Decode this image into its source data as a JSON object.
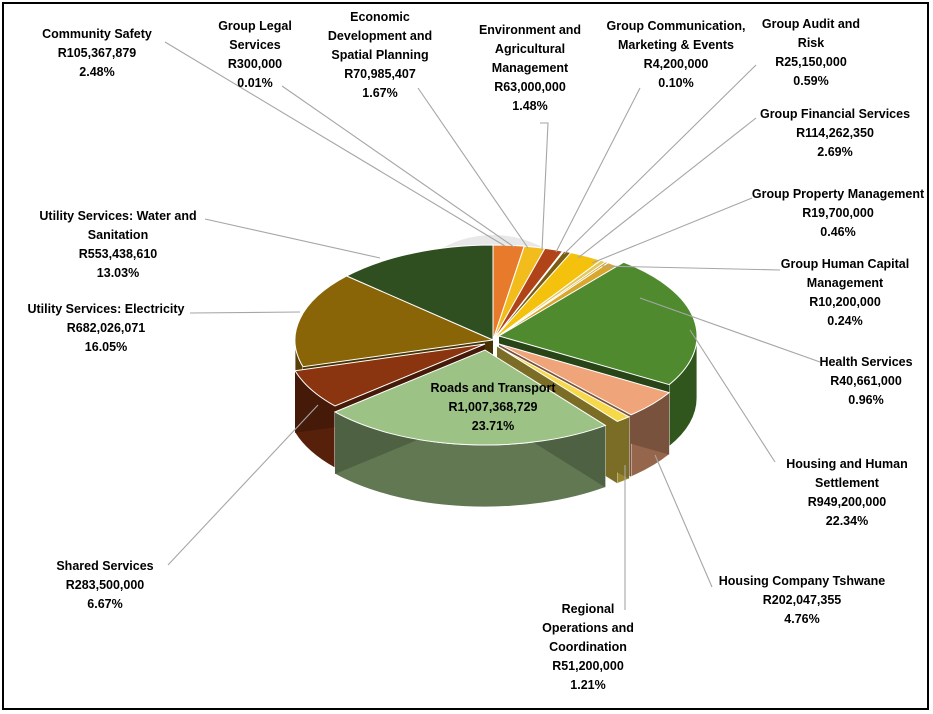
{
  "chart_data": {
    "type": "pie",
    "style": "3d-exploded",
    "legend": "none",
    "title": "",
    "slices": [
      {
        "name": "Community Safety",
        "amount": "R105,367,879",
        "value": 105367879,
        "percent": "2.48%",
        "color": "#e87a2c"
      },
      {
        "name": "Group Legal Services",
        "amount": "R300,000",
        "value": 300000,
        "percent": "0.01%",
        "color": "#f3b51e"
      },
      {
        "name": "Economic Development and Spatial Planning",
        "amount": "R70,985,407",
        "value": 70985407,
        "percent": "1.67%",
        "color": "#f2bd1c"
      },
      {
        "name": "Environment and Agricultural Management",
        "amount": "R63,000,000",
        "value": 63000000,
        "percent": "1.48%",
        "color": "#b04418"
      },
      {
        "name": "Group Communication, Marketing & Events",
        "amount": "R4,200,000",
        "value": 4200000,
        "percent": "0.10%",
        "color": "#8b5a10"
      },
      {
        "name": "Group Audit and Risk",
        "amount": "R25,150,000",
        "value": 25150000,
        "percent": "0.59%",
        "color": "#7a5c12"
      },
      {
        "name": "Group Financial Services",
        "amount": "R114,262,350",
        "value": 114262350,
        "percent": "2.69%",
        "color": "#f4c20d"
      },
      {
        "name": "Group Property Management",
        "amount": "R19,700,000",
        "value": 19700000,
        "percent": "0.46%",
        "color": "#e6c75a"
      },
      {
        "name": "Group Human Capital Management",
        "amount": "R10,200,000",
        "value": 10200000,
        "percent": "0.24%",
        "color": "#c9a227"
      },
      {
        "name": "Health Services",
        "amount": "R40,661,000",
        "value": 40661000,
        "percent": "0.96%",
        "color": "#d9a62e"
      },
      {
        "name": "Housing and Human Settlement",
        "amount": "R949,200,000",
        "value": 949200000,
        "percent": "22.34%",
        "color": "#4f8a2f"
      },
      {
        "name": "Housing Company Tshwane",
        "amount": "R202,047,355",
        "value": 202047355,
        "percent": "4.76%",
        "color": "#f0a47a"
      },
      {
        "name": "Regional Operations and Coordination",
        "amount": "R51,200,000",
        "value": 51200000,
        "percent": "1.21%",
        "color": "#f5d94a"
      },
      {
        "name": "Roads and Transport",
        "amount": "R1,007,368,729",
        "value": 1007368729,
        "percent": "23.71%",
        "color": "#9cc286"
      },
      {
        "name": "Shared Services",
        "amount": "R283,500,000",
        "value": 283500000,
        "percent": "6.67%",
        "color": "#8a3410"
      },
      {
        "name": "Utility Services: Electricity",
        "amount": "R682,026,071",
        "value": 682026071,
        "percent": "16.05%",
        "color": "#8a6508"
      },
      {
        "name": "Utility Services: Water and Sanitation",
        "amount": "R553,438,610",
        "value": 553438610,
        "percent": "13.03%",
        "color": "#2f4f20"
      }
    ]
  }
}
